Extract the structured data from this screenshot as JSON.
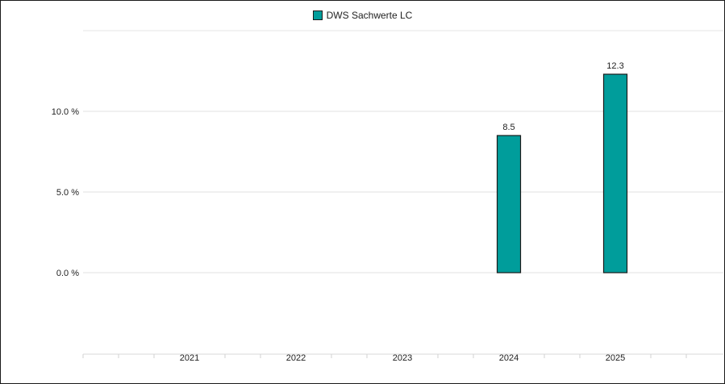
{
  "chart_data": {
    "type": "bar",
    "categories": [
      "2021",
      "2022",
      "2023",
      "2024",
      "2025"
    ],
    "series": [
      {
        "name": "DWS Sachwerte LC",
        "values": [
          null,
          null,
          null,
          8.5,
          12.3
        ],
        "data_labels": [
          "",
          "",
          "",
          "8.5",
          "12.3"
        ],
        "color": "#009d9b",
        "border_color": "#1a1a1a"
      }
    ],
    "yticks": [
      0,
      5,
      10
    ],
    "ytick_labels": [
      "0.0 %",
      "5.0 %",
      "10.0 %"
    ],
    "ylim": [
      -5,
      15
    ],
    "grid": true,
    "legend_position": "top-center"
  }
}
